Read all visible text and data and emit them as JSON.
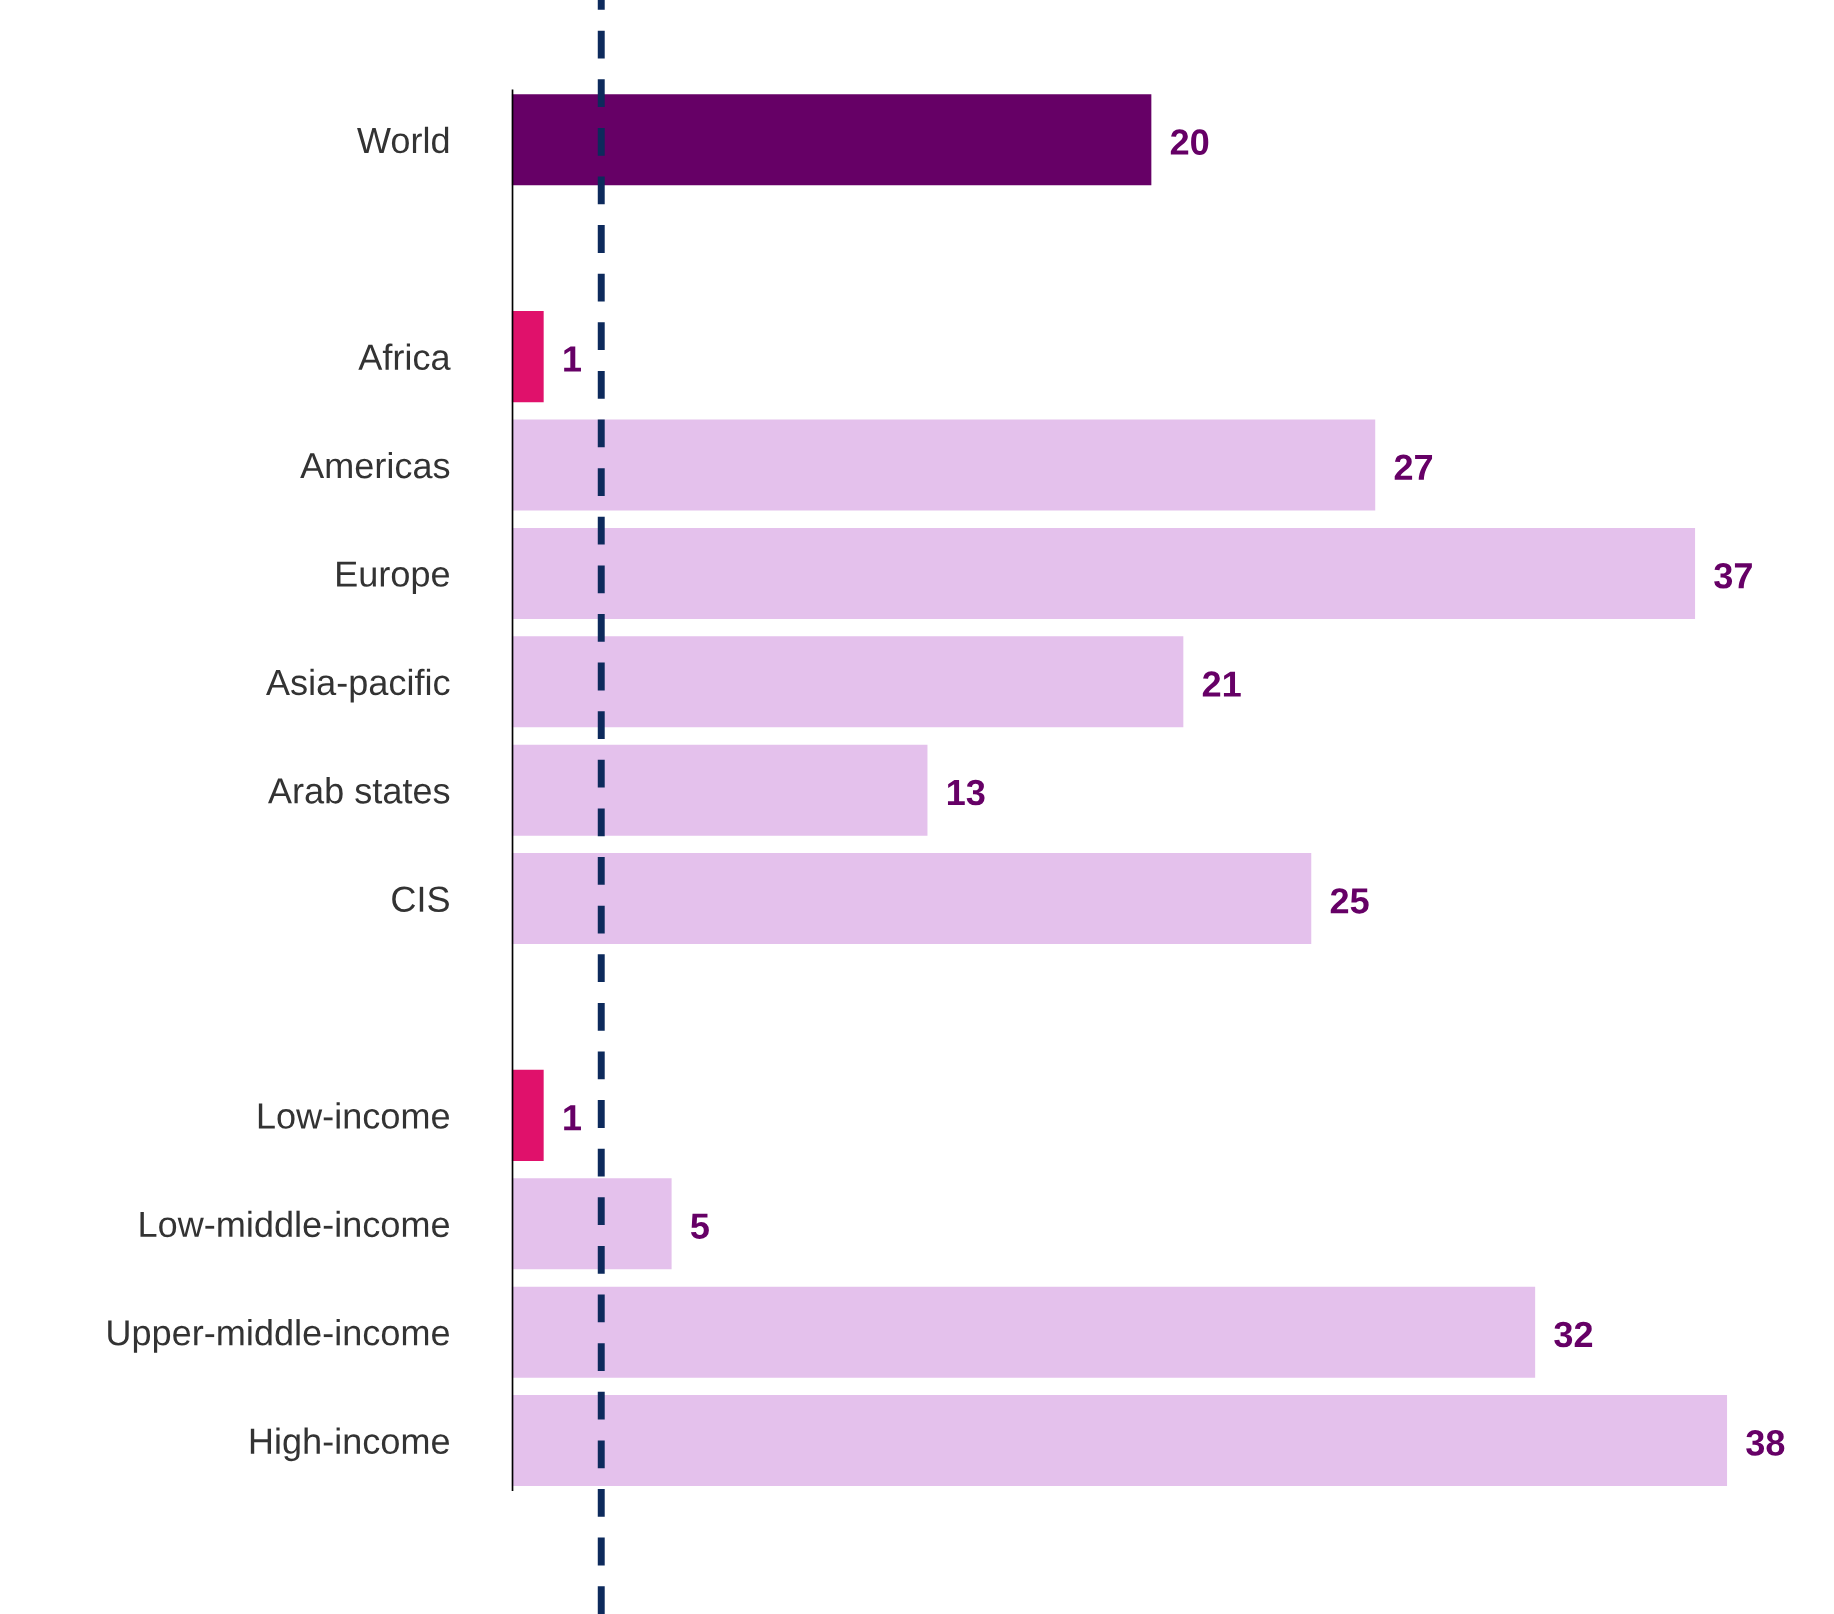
{
  "chart_data": {
    "type": "bar",
    "orientation": "horizontal",
    "categories": [
      "World",
      null,
      "Africa",
      "Americas",
      "Europe",
      "Asia-pacific",
      "Arab states",
      "CIS",
      null,
      "Low-income",
      "Low-middle-income",
      "Upper-middle-income",
      "High-income"
    ],
    "values": [
      20,
      null,
      1,
      27,
      37,
      21,
      13,
      25,
      null,
      1,
      5,
      32,
      38
    ],
    "colors": [
      "#660066",
      null,
      "#e0116b",
      "#e4c1ec",
      "#e4c1ec",
      "#e4c1ec",
      "#e4c1ec",
      "#e4c1ec",
      null,
      "#e0116b",
      "#e4c1ec",
      "#e4c1ec",
      "#e4c1ec"
    ],
    "data_labels": true,
    "ref_lines": [
      {
        "axis": "x",
        "value": 2.8,
        "color": "#0d2a5c",
        "line_style": "dashed"
      }
    ],
    "grid": false,
    "legend": false
  }
}
